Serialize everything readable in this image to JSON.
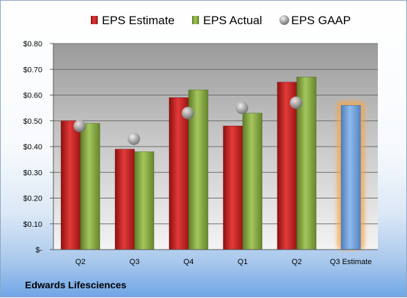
{
  "chart_data": {
    "type": "bar",
    "categories": [
      "Q2",
      "Q3",
      "Q4",
      "Q1",
      "Q2",
      "Q3 Estimate"
    ],
    "series": [
      {
        "name": "EPS Estimate",
        "values": [
          0.5,
          0.39,
          0.59,
          0.48,
          0.65,
          null
        ],
        "color": "#d42a2a"
      },
      {
        "name": "EPS Actual",
        "values": [
          0.49,
          0.38,
          0.62,
          0.53,
          0.67,
          null
        ],
        "color": "#8db04a"
      },
      {
        "name": "EPS GAAP",
        "values": [
          0.48,
          0.43,
          0.53,
          0.55,
          0.57,
          null
        ],
        "color": "#b8b8b8",
        "marker": "sphere"
      },
      {
        "name": "Q3 Estimate",
        "values": [
          null,
          null,
          null,
          null,
          null,
          0.56
        ],
        "color": "#6f9fd8",
        "highlight": "#f5a64a"
      }
    ],
    "ylim": [
      0,
      0.8
    ],
    "yticks": [
      0,
      0.1,
      0.2,
      0.3,
      0.4,
      0.5,
      0.6,
      0.7,
      0.8
    ],
    "ytick_labels": [
      "$-",
      "$0.10",
      "$0.20",
      "$0.30",
      "$0.40",
      "$0.50",
      "$0.60",
      "$0.70",
      "$0.80"
    ],
    "legend": [
      "EPS Estimate",
      "EPS Actual",
      "EPS GAAP"
    ],
    "legend_position": "top",
    "grid": true
  },
  "footer": {
    "company": "Edwards Lifesciences"
  }
}
